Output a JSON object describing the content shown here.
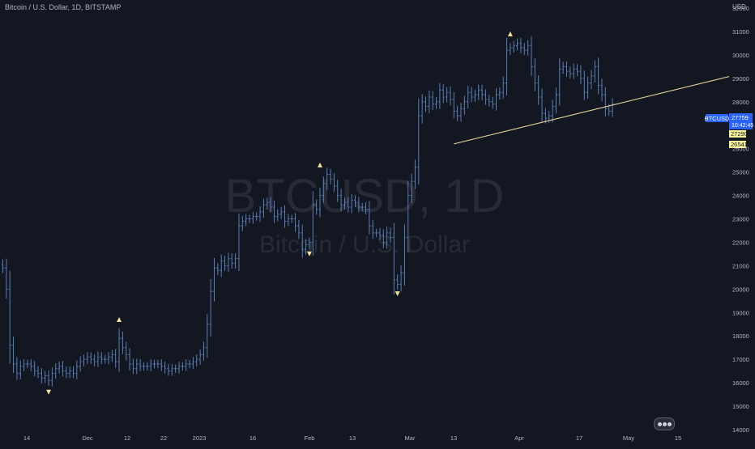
{
  "header": {
    "title": "Bitcoin / U.S. Dollar, 1D, BITSTAMP"
  },
  "watermark": {
    "symbol": "BTCUSD, 1D",
    "name": "Bitcoin / U.S. Dollar"
  },
  "currency_label": "USD",
  "price_tags": {
    "symbol": "BTCUSD",
    "last": "27759",
    "countdown": "10:42:45",
    "level1": "27290",
    "level2": "26541"
  },
  "colors": {
    "background": "#131722",
    "bar": "#5b7db5",
    "axis_text": "#b2b5be",
    "marker": "#f2e39b",
    "trendline": "#e8d89b",
    "last_price_tag": "#2962ff",
    "level_tag": "#fff59d"
  },
  "chart_data": {
    "type": "ohlc",
    "title": "Bitcoin / U.S. Dollar, 1D, BITSTAMP",
    "ylabel": "USD",
    "ylim": [
      14000,
      32500
    ],
    "y_ticks": [
      14000,
      15000,
      16000,
      17000,
      18000,
      19000,
      20000,
      21000,
      22000,
      23000,
      24000,
      25000,
      26000,
      27000,
      28000,
      29000,
      30000,
      31000,
      32000
    ],
    "x_ticks": [
      "14",
      "Dec",
      "12",
      "22",
      "2023",
      "16",
      "Feb",
      "13",
      "Mar",
      "13",
      "Apr",
      "17",
      "May",
      "15"
    ],
    "grid": false,
    "trendline": {
      "from": [
        128,
        26200
      ],
      "to": [
        185,
        28300
      ]
    },
    "markers": [
      {
        "index": 13,
        "type": "down",
        "value": 15600
      },
      {
        "index": 33,
        "type": "up",
        "value": 18700
      },
      {
        "index": 87,
        "type": "down",
        "value": 21500
      },
      {
        "index": 90,
        "type": "up",
        "value": 25300
      },
      {
        "index": 112,
        "type": "down",
        "value": 19800
      },
      {
        "index": 144,
        "type": "up",
        "value": 30900
      }
    ],
    "closes": [
      20900,
      20000,
      17600,
      16800,
      16400,
      16700,
      16800,
      16800,
      16700,
      16500,
      16400,
      16200,
      16300,
      16100,
      16400,
      16600,
      16700,
      16500,
      16400,
      16500,
      16400,
      16700,
      16900,
      17000,
      17100,
      17000,
      16900,
      17100,
      17000,
      17000,
      17100,
      17200,
      16900,
      17900,
      17500,
      17200,
      16800,
      16600,
      16800,
      16700,
      16700,
      16700,
      16800,
      16800,
      16800,
      16700,
      16600,
      16500,
      16600,
      16600,
      16700,
      16700,
      16800,
      16800,
      16900,
      17000,
      17200,
      17500,
      18500,
      19900,
      20900,
      20800,
      21200,
      21000,
      21300,
      21100,
      21300,
      22700,
      22900,
      23000,
      23000,
      23100,
      23100,
      23300,
      23600,
      23700,
      23500,
      23100,
      23200,
      23300,
      22900,
      23000,
      23000,
      22700,
      22400,
      21700,
      21900,
      22000,
      23600,
      23400,
      24000,
      24500,
      24900,
      24700,
      24400,
      24000,
      23600,
      23700,
      23500,
      23800,
      23700,
      23500,
      23500,
      23400,
      22700,
      22400,
      22400,
      22300,
      22000,
      22400,
      22200,
      20400,
      20200,
      20700,
      22200,
      24000,
      24600,
      25200,
      27400,
      28000,
      27800,
      28200,
      27900,
      28000,
      28500,
      28200,
      28400,
      28100,
      27600,
      27400,
      27700,
      28000,
      28400,
      28200,
      28300,
      28500,
      28300,
      28100,
      28000,
      27900,
      28300,
      28400,
      28800,
      30200,
      30300,
      30400,
      30500,
      30300,
      30200,
      30400,
      29500,
      28800,
      28200,
      27500,
      27300,
      27400,
      27800,
      28300,
      29400,
      29500,
      29300,
      29200,
      29400,
      29300,
      29000,
      28400,
      28800,
      29100,
      29500,
      28700,
      28300,
      27700,
      27600,
      27900
    ]
  }
}
